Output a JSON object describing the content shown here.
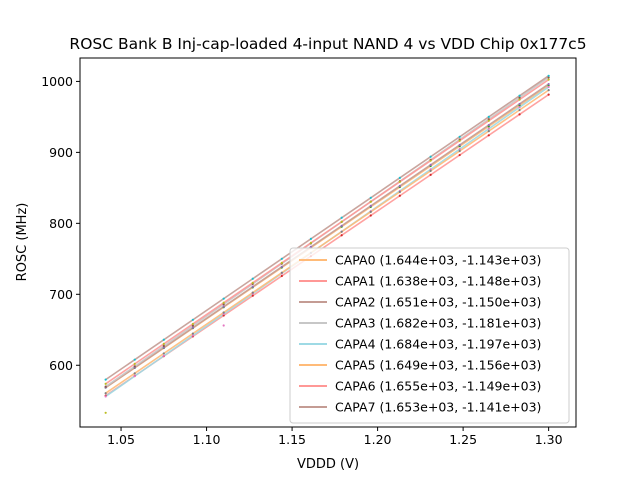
{
  "chart_data": {
    "type": "line",
    "title": "ROSC Bank B Inj-cap-loaded 4-input NAND 4 vs VDD Chip 0x177c5",
    "xlabel": "VDDD (V)",
    "ylabel": "ROSC (MHz)",
    "xlim": [
      1.026,
      1.316
    ],
    "ylim": [
      513,
      1033
    ],
    "xticks": [
      1.05,
      1.1,
      1.15,
      1.2,
      1.25,
      1.3
    ],
    "xtick_labels": [
      "1.05",
      "1.10",
      "1.15",
      "1.20",
      "1.25",
      "1.30"
    ],
    "yticks": [
      600,
      700,
      800,
      900,
      1000
    ],
    "ytick_labels": [
      "600",
      "700",
      "800",
      "900",
      "1000"
    ],
    "x": [
      1.041,
      1.058,
      1.075,
      1.092,
      1.11,
      1.127,
      1.144,
      1.161,
      1.179,
      1.196,
      1.213,
      1.231,
      1.248,
      1.265,
      1.283,
      1.3
    ],
    "legend_position": "lower-right",
    "grid": false,
    "series": [
      {
        "name": "CAPA0",
        "label": "CAPA0 (1.644e+03, -1.143e+03)",
        "slope": 1644,
        "intercept": -1143,
        "color": "#ffbb78"
      },
      {
        "name": "CAPA1",
        "label": "CAPA1 (1.638e+03, -1.148e+03)",
        "slope": 1638,
        "intercept": -1148,
        "color": "#ff9896"
      },
      {
        "name": "CAPA2",
        "label": "CAPA2 (1.651e+03, -1.150e+03)",
        "slope": 1651,
        "intercept": -1150,
        "color": "#c49c94"
      },
      {
        "name": "CAPA3",
        "label": "CAPA3 (1.682e+03, -1.181e+03)",
        "slope": 1682,
        "intercept": -1181,
        "color": "#c7c7c7"
      },
      {
        "name": "CAPA4",
        "label": "CAPA4 (1.684e+03, -1.197e+03)",
        "slope": 1684,
        "intercept": -1197,
        "color": "#9edae5"
      },
      {
        "name": "CAPA5",
        "label": "CAPA5 (1.649e+03, -1.156e+03)",
        "slope": 1649,
        "intercept": -1156,
        "color": "#ffbb78"
      },
      {
        "name": "CAPA6",
        "label": "CAPA6 (1.655e+03, -1.149e+03)",
        "slope": 1655,
        "intercept": -1149,
        "color": "#ff9896"
      },
      {
        "name": "CAPA7",
        "label": "CAPA7 (1.653e+03, -1.141e+03)",
        "slope": 1653,
        "intercept": -1141,
        "color": "#c49c94"
      }
    ],
    "marker_colors": [
      "#2ca02c",
      "#d62728",
      "#9467bd",
      "#8c564b",
      "#e377c2",
      "#7f7f7f",
      "#bcbd22",
      "#17becf"
    ],
    "outliers": [
      {
        "x": 1.041,
        "y": 533,
        "color": "#bcbd22"
      },
      {
        "x": 1.11,
        "y": 656,
        "color": "#e377c2"
      }
    ]
  }
}
